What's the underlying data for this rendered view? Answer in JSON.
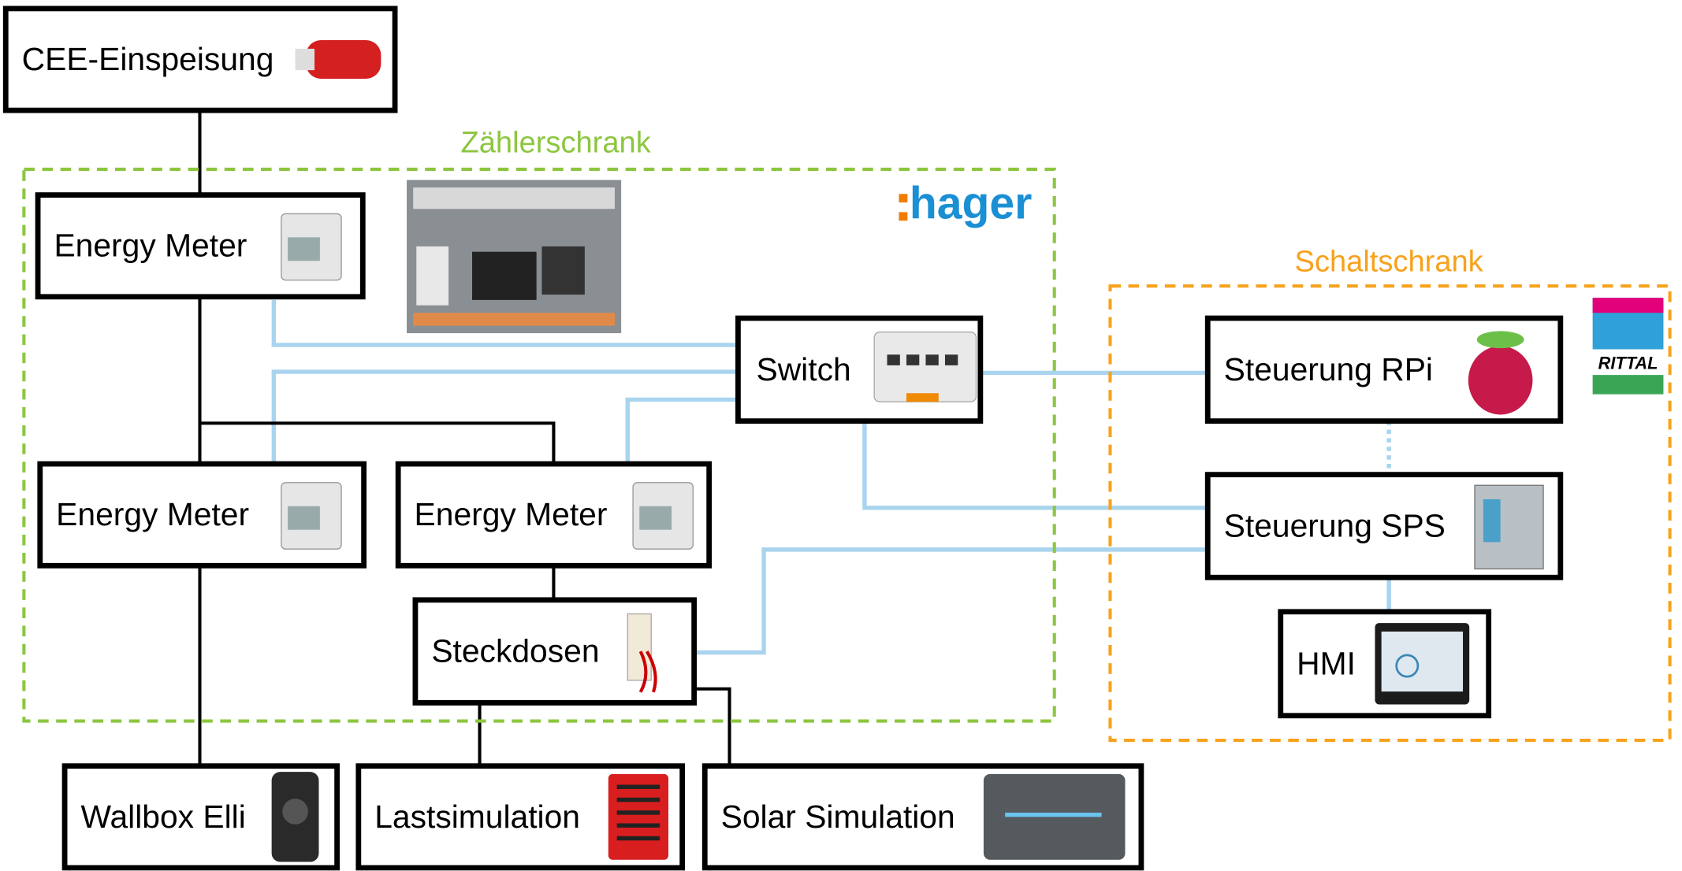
{
  "groups": [
    {
      "label": "Zählerschrank"
    },
    {
      "label": "Schaltschrank"
    }
  ],
  "logos": [
    "hager",
    "RITTAL"
  ],
  "nodes": [
    {
      "label": "CEE-Einspeisung"
    },
    {
      "label": "Energy Meter"
    },
    {
      "label": "Switch"
    },
    {
      "label": "Steuerung RPi"
    },
    {
      "label": "Energy Meter"
    },
    {
      "label": "Energy Meter"
    },
    {
      "label": "Steuerung SPS"
    },
    {
      "label": "Steckdosen"
    },
    {
      "label": "HMI"
    },
    {
      "label": "Wallbox Elli"
    },
    {
      "label": "Lastsimulation"
    },
    {
      "label": "Solar Simulation"
    }
  ]
}
